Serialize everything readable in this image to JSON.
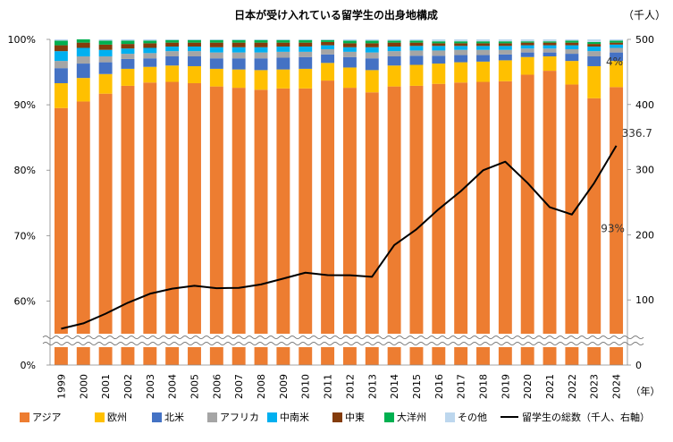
{
  "chart_data": {
    "type": "bar",
    "stacked": true,
    "title": "日本が受け入れている留学生の出身地構成",
    "right_unit_label": "（千人）",
    "x_unit_label": "（年）",
    "categories": [
      "1999",
      "2000",
      "2001",
      "2002",
      "2003",
      "2004",
      "2005",
      "2006",
      "2007",
      "2008",
      "2009",
      "2010",
      "2011",
      "2012",
      "2013",
      "2014",
      "2015",
      "2016",
      "2017",
      "2018",
      "2019",
      "2020",
      "2021",
      "2022",
      "2023",
      "2024"
    ],
    "left_axis": {
      "ticks": [
        "0%",
        "60%",
        "70%",
        "80%",
        "90%",
        "100%"
      ],
      "ylim_percent": [
        55,
        100
      ],
      "broken": true
    },
    "right_axis": {
      "ticks": [
        "0",
        "100",
        "200",
        "300",
        "400",
        "500"
      ],
      "ylim": [
        0,
        500
      ]
    },
    "series": [
      {
        "name": "アジア",
        "color": "#ED7D31",
        "values": [
          89.5,
          90.5,
          91.7,
          92.9,
          93.4,
          93.5,
          93.3,
          92.8,
          92.6,
          92.3,
          92.5,
          92.5,
          93.7,
          92.6,
          91.9,
          92.8,
          92.9,
          93.2,
          93.4,
          93.5,
          93.6,
          94.6,
          95.2,
          93.1,
          91.0,
          92.7
        ]
      },
      {
        "name": "欧州",
        "color": "#FFC000",
        "values": [
          3.8,
          3.6,
          3.0,
          2.6,
          2.4,
          2.5,
          2.6,
          2.7,
          2.8,
          3.0,
          2.9,
          3.0,
          2.7,
          3.1,
          3.4,
          3.2,
          3.2,
          3.1,
          3.1,
          3.1,
          3.2,
          2.7,
          2.2,
          3.6,
          4.9,
          4.0
        ]
      },
      {
        "name": "北米",
        "color": "#4472C4",
        "values": [
          2.3,
          2.2,
          1.8,
          1.5,
          1.3,
          1.4,
          1.5,
          1.6,
          1.7,
          1.8,
          1.8,
          1.8,
          1.3,
          1.6,
          1.8,
          1.4,
          1.4,
          1.2,
          1.1,
          1.0,
          0.9,
          0.7,
          0.6,
          1.1,
          1.5,
          1.3
        ]
      },
      {
        "name": "アフリカ",
        "color": "#A5A5A5",
        "values": [
          1.1,
          1.1,
          0.9,
          0.8,
          0.8,
          0.8,
          0.8,
          0.9,
          0.9,
          0.9,
          0.9,
          0.8,
          0.8,
          0.8,
          0.9,
          0.8,
          0.8,
          0.8,
          0.8,
          0.8,
          0.7,
          0.6,
          0.6,
          0.7,
          0.8,
          0.7
        ]
      },
      {
        "name": "中南米",
        "color": "#00B0F0",
        "values": [
          1.5,
          1.3,
          1.0,
          0.8,
          0.8,
          0.7,
          0.7,
          0.8,
          0.8,
          0.8,
          0.8,
          0.8,
          0.6,
          0.7,
          0.8,
          0.7,
          0.7,
          0.7,
          0.6,
          0.6,
          0.6,
          0.5,
          0.5,
          0.6,
          0.7,
          0.5
        ]
      },
      {
        "name": "中東",
        "color": "#843C0C",
        "values": [
          0.9,
          0.8,
          0.8,
          0.7,
          0.7,
          0.6,
          0.6,
          0.7,
          0.7,
          0.7,
          0.6,
          0.6,
          0.5,
          0.6,
          0.6,
          0.6,
          0.5,
          0.4,
          0.4,
          0.4,
          0.4,
          0.4,
          0.4,
          0.4,
          0.4,
          0.3
        ]
      },
      {
        "name": "大洋州",
        "color": "#00B050",
        "values": [
          0.7,
          0.6,
          0.6,
          0.5,
          0.4,
          0.4,
          0.4,
          0.4,
          0.4,
          0.4,
          0.4,
          0.4,
          0.3,
          0.4,
          0.4,
          0.3,
          0.3,
          0.3,
          0.3,
          0.3,
          0.3,
          0.2,
          0.2,
          0.3,
          0.3,
          0.3
        ]
      },
      {
        "name": "その他",
        "color": "#BDD7EE",
        "values": [
          0.2,
          0.2,
          0.2,
          0.2,
          0.2,
          0.1,
          0.1,
          0.1,
          0.1,
          0.1,
          0.1,
          0.1,
          0.1,
          0.2,
          0.2,
          0.2,
          0.2,
          0.3,
          0.3,
          0.3,
          0.3,
          0.3,
          0.3,
          0.2,
          0.4,
          0.2
        ]
      }
    ],
    "line_series": {
      "name": "留学生の総数（千人、右軸）",
      "color": "#000000",
      "values": [
        55.8,
        64.0,
        78.8,
        95.6,
        109.5,
        117.3,
        121.8,
        118.0,
        118.5,
        123.8,
        132.7,
        141.8,
        138.1,
        137.8,
        135.5,
        184.2,
        208.4,
        239.3,
        267.0,
        298.98,
        312.2,
        279.6,
        242.4,
        231.1,
        279.3,
        336.7
      ]
    },
    "annotations": {
      "total_value_label": "336.7",
      "asia_share_label": "93%",
      "europe_share_label": "4%"
    }
  }
}
